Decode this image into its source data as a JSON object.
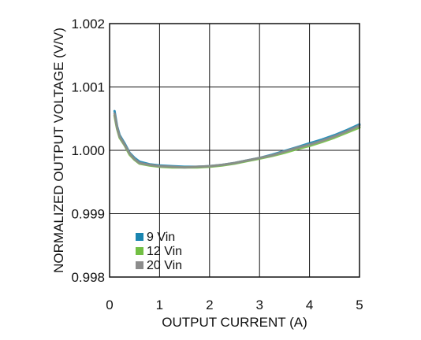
{
  "chart_data": {
    "type": "line",
    "title": "",
    "xlabel": "OUTPUT CURRENT (A)",
    "ylabel": "NORMALIZED OUTPUT VOLTAGE (V/V)",
    "xlim": [
      0,
      5
    ],
    "ylim": [
      0.998,
      1.002
    ],
    "xticks": [
      0,
      1,
      2,
      3,
      4,
      5
    ],
    "xtick_labels": [
      "0",
      "1",
      "2",
      "3",
      "4",
      "5"
    ],
    "yticks": [
      0.998,
      0.999,
      1.0,
      1.001,
      1.002
    ],
    "ytick_labels": [
      "0.998",
      "0.999",
      "1.000",
      "1.001",
      "1.002"
    ],
    "grid": true,
    "legend_position": "bottom-left",
    "series": [
      {
        "name": "9 Vin",
        "color": "#1a85b0",
        "x": [
          0.1,
          0.12,
          0.15,
          0.2,
          0.3,
          0.4,
          0.5,
          0.6,
          0.8,
          1.0,
          1.25,
          1.5,
          1.75,
          2.0,
          2.25,
          2.5,
          2.75,
          3.0,
          3.25,
          3.5,
          3.75,
          4.0,
          4.25,
          4.5,
          4.75,
          5.0
        ],
        "y": [
          1.00062,
          1.00052,
          1.00038,
          1.00024,
          1.00011,
          0.99996,
          0.99988,
          0.99982,
          0.99978,
          0.99976,
          0.99975,
          0.99974,
          0.99974,
          0.99975,
          0.99977,
          0.9998,
          0.99984,
          0.99988,
          0.99993,
          0.99999,
          1.00005,
          1.00011,
          1.00017,
          1.00024,
          1.00032,
          1.00041
        ]
      },
      {
        "name": "12 Vin",
        "color": "#72bf44",
        "x": [
          0.1,
          0.12,
          0.15,
          0.2,
          0.3,
          0.4,
          0.5,
          0.6,
          0.8,
          1.0,
          1.25,
          1.5,
          1.75,
          2.0,
          2.25,
          2.5,
          2.75,
          3.0,
          3.25,
          3.5,
          3.75,
          4.0,
          4.25,
          4.5,
          4.75,
          5.0
        ],
        "y": [
          1.00055,
          1.00046,
          1.00034,
          1.0002,
          1.00008,
          0.99993,
          0.99985,
          0.99979,
          0.99976,
          0.99974,
          0.99973,
          0.99973,
          0.99973,
          0.99974,
          0.99976,
          0.99979,
          0.99983,
          0.99987,
          0.99991,
          0.99996,
          1.00002,
          1.00007,
          1.00013,
          1.0002,
          1.00028,
          1.00036
        ]
      },
      {
        "name": "20 Vin",
        "color": "#8c8c8c",
        "x": [
          0.1,
          0.12,
          0.15,
          0.2,
          0.3,
          0.4,
          0.5,
          0.6,
          0.8,
          1.0,
          1.25,
          1.5,
          1.75,
          2.0,
          2.25,
          2.5,
          2.75,
          3.0,
          3.25,
          3.5,
          3.75,
          4.0,
          4.25,
          4.5,
          4.75,
          5.0
        ],
        "y": [
          1.00058,
          1.00049,
          1.00036,
          1.00022,
          1.00009,
          0.99995,
          0.99986,
          0.9998,
          0.99977,
          0.99975,
          0.99974,
          0.99973,
          0.99974,
          0.99975,
          0.99977,
          0.9998,
          0.99984,
          0.99988,
          0.99992,
          0.99998,
          1.00004,
          1.00009,
          1.00015,
          1.00022,
          1.0003,
          1.00039
        ]
      }
    ]
  }
}
